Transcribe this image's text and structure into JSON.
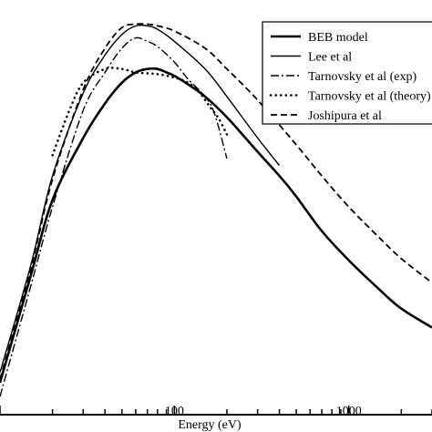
{
  "chart_data": {
    "type": "line",
    "title": "",
    "xlabel": "Energy (eV)",
    "ylabel": "",
    "xscale": "log",
    "xlim": [
      10,
      3000
    ],
    "ylim": [
      0,
      1.2
    ],
    "x_tick_labels": [
      {
        "value": 100,
        "label": "100"
      },
      {
        "value": 1000,
        "label": "1000"
      }
    ],
    "grid": false,
    "legend_position": "top-right",
    "series": [
      {
        "name": "BEB model",
        "style": "solid-thick",
        "points": [
          [
            10,
            0.09
          ],
          [
            15,
            0.4
          ],
          [
            20,
            0.62
          ],
          [
            30,
            0.8
          ],
          [
            40,
            0.9
          ],
          [
            50,
            0.96
          ],
          [
            60,
            0.99
          ],
          [
            70,
            1.0
          ],
          [
            80,
            1.0
          ],
          [
            90,
            0.99
          ],
          [
            100,
            0.98
          ],
          [
            120,
            0.955
          ],
          [
            150,
            0.92
          ],
          [
            200,
            0.86
          ],
          [
            300,
            0.76
          ],
          [
            400,
            0.69
          ],
          [
            500,
            0.63
          ],
          [
            700,
            0.53
          ],
          [
            1000,
            0.445
          ],
          [
            1500,
            0.36
          ],
          [
            2000,
            0.305
          ],
          [
            3000,
            0.25
          ]
        ]
      },
      {
        "name": "Lee et al",
        "style": "solid-thin",
        "points": [
          [
            10,
            0.12
          ],
          [
            15,
            0.43
          ],
          [
            20,
            0.69
          ],
          [
            30,
            0.93
          ],
          [
            40,
            1.04
          ],
          [
            50,
            1.1
          ],
          [
            60,
            1.125
          ],
          [
            70,
            1.125
          ],
          [
            80,
            1.115
          ],
          [
            100,
            1.08
          ],
          [
            150,
            1.0
          ],
          [
            200,
            0.92
          ],
          [
            300,
            0.8
          ],
          [
            400,
            0.72
          ]
        ]
      },
      {
        "name": "Tarnovsky et al (exp)",
        "style": "dash-dot",
        "points": [
          [
            10,
            0.05
          ],
          [
            15,
            0.37
          ],
          [
            20,
            0.6
          ],
          [
            30,
            0.88
          ],
          [
            40,
            0.99
          ],
          [
            50,
            1.06
          ],
          [
            60,
            1.09
          ],
          [
            70,
            1.08
          ],
          [
            80,
            1.065
          ],
          [
            100,
            1.02
          ],
          [
            120,
            0.97
          ],
          [
            150,
            0.92
          ],
          [
            170,
            0.87
          ],
          [
            200,
            0.74
          ]
        ]
      },
      {
        "name": "Tarnovsky et al (theory)",
        "style": "dotted",
        "points": [
          [
            20,
            0.75
          ],
          [
            25,
            0.88
          ],
          [
            30,
            0.96
          ],
          [
            40,
            1.0
          ],
          [
            50,
            1.0
          ],
          [
            60,
            0.99
          ],
          [
            80,
            0.985
          ],
          [
            100,
            0.975
          ],
          [
            120,
            0.96
          ],
          [
            140,
            0.93
          ],
          [
            160,
            0.89
          ],
          [
            180,
            0.855
          ],
          [
            200,
            0.81
          ]
        ]
      },
      {
        "name": "Joshipura et al",
        "style": "dashed",
        "points": [
          [
            10,
            0.1
          ],
          [
            15,
            0.42
          ],
          [
            20,
            0.68
          ],
          [
            30,
            0.94
          ],
          [
            40,
            1.06
          ],
          [
            50,
            1.12
          ],
          [
            60,
            1.13
          ],
          [
            70,
            1.13
          ],
          [
            80,
            1.125
          ],
          [
            100,
            1.11
          ],
          [
            150,
            1.06
          ],
          [
            200,
            1.0
          ],
          [
            300,
            0.91
          ],
          [
            500,
            0.78
          ],
          [
            700,
            0.69
          ],
          [
            1000,
            0.6
          ],
          [
            1500,
            0.51
          ],
          [
            2000,
            0.45
          ],
          [
            3000,
            0.38
          ]
        ]
      }
    ]
  }
}
